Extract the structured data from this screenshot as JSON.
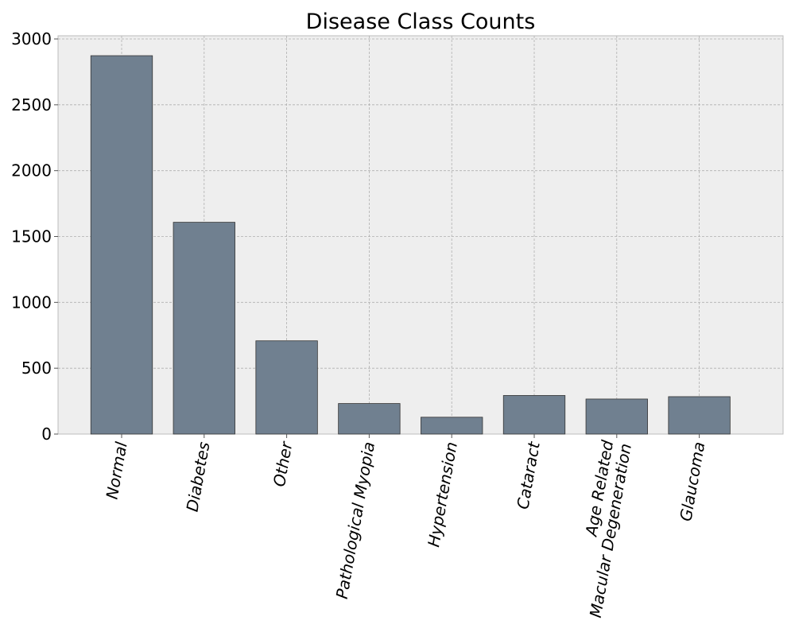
{
  "chart_data": {
    "type": "bar",
    "title": "Disease Class Counts",
    "xlabel": "",
    "ylabel": "",
    "categories": [
      "Normal",
      "Diabetes",
      "Other",
      "Pathological Myopia",
      "Hypertension",
      "Cataract",
      "Age Related\nMacular Degeneration",
      "Glaucoma"
    ],
    "values": [
      2873,
      1608,
      708,
      232,
      128,
      293,
      266,
      284
    ],
    "ylim": [
      0,
      3000
    ],
    "yticks": [
      "0",
      "500",
      "1000",
      "1500",
      "2000",
      "2500",
      "3000"
    ],
    "grid": true,
    "colors": {
      "bar": "#708090",
      "plot_background": "#eeeeee"
    }
  }
}
